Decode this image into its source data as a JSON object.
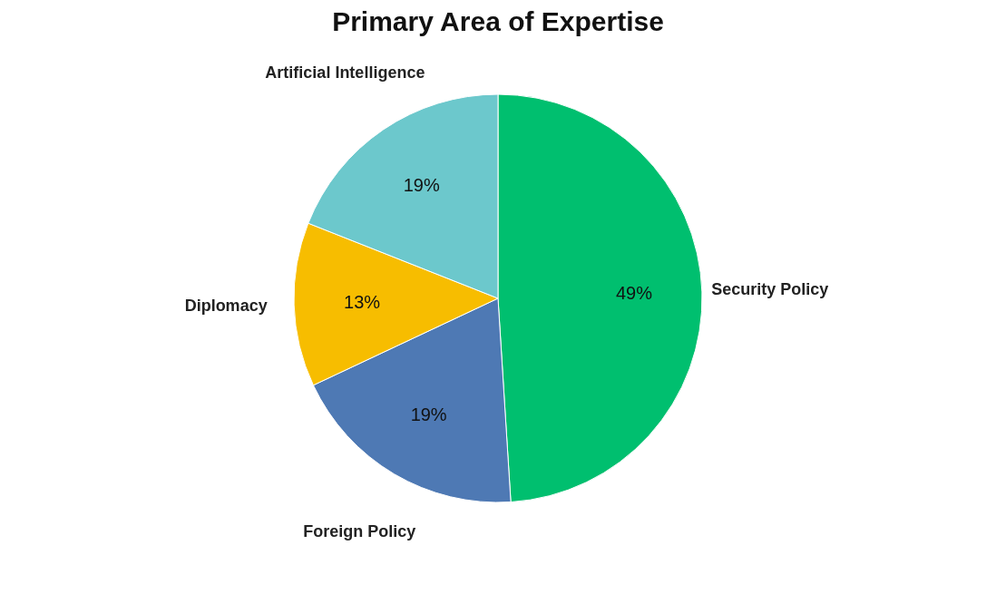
{
  "chart_data": {
    "type": "pie",
    "title": "Primary Area of Expertise",
    "categories": [
      "Security Policy",
      "Foreign Policy",
      "Diplomacy",
      "Artificial Intelligence"
    ],
    "values": [
      49,
      19,
      13,
      19
    ],
    "colors": [
      "#00bf6f",
      "#4e79b4",
      "#f7bd00",
      "#6cc8cc"
    ],
    "value_labels": [
      "49%",
      "19%",
      "13%",
      "19%"
    ],
    "legend": false
  }
}
